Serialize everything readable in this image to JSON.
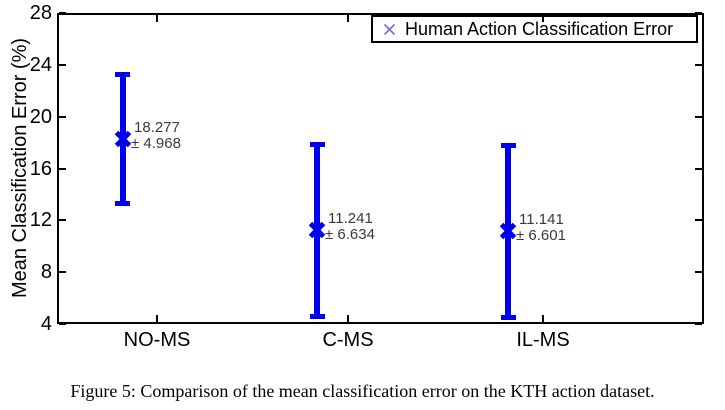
{
  "figure": {
    "caption": "Figure 5: Comparison of the mean classification error on the KTH action dataset."
  },
  "chart_data": {
    "type": "scatter",
    "subtype": "errorbar",
    "title": "",
    "xlabel": "",
    "ylabel": "Mean Classification Error (%)",
    "ylim": [
      4,
      28
    ],
    "yticks": [
      4,
      8,
      12,
      16,
      20,
      24,
      28
    ],
    "grid": false,
    "categories": [
      "NO-MS",
      "C-MS",
      "IL-MS"
    ],
    "legend": {
      "position": "top-right",
      "marker": "x-icon",
      "label": "Human Action Classification Error"
    },
    "series": [
      {
        "name": "Human Action Classification Error",
        "means": [
          18.277,
          11.241,
          11.141
        ],
        "errors": [
          4.968,
          6.634,
          6.601
        ],
        "point_labels": [
          {
            "value": "18.277",
            "error": "± 4.968"
          },
          {
            "value": "11.241",
            "error": "± 6.634"
          },
          {
            "value": "11.141",
            "error": "± 6.601"
          }
        ]
      }
    ],
    "colors": {
      "errorbar": "#0000ee",
      "legend_marker": "#7070d4",
      "annotation_text": "#3a3a3a",
      "axis": "#000000"
    }
  }
}
